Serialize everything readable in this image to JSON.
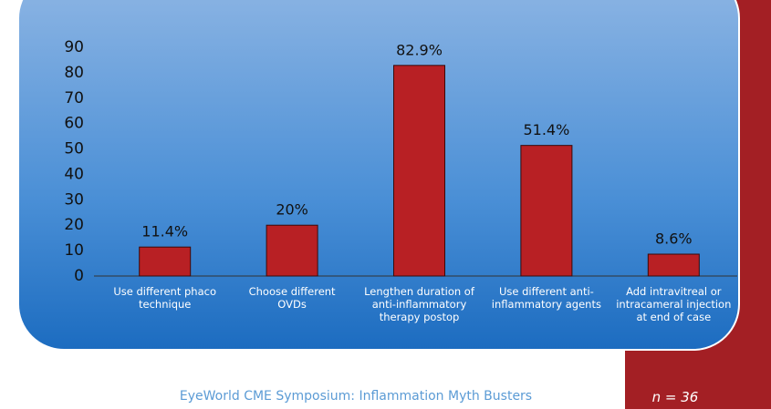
{
  "chart_data": {
    "type": "bar",
    "categories": [
      "Use different phaco technique",
      "Choose different OVDs",
      "Lengthen duration of anti-inflammatory therapy postop",
      "Use different anti-inflammatory agents",
      "Add intravitreal or intracameral injection at end of case"
    ],
    "values": [
      11.4,
      20,
      82.9,
      51.4,
      8.6
    ],
    "value_labels": [
      "11.4%",
      "20%",
      "82.9%",
      "51.4%",
      "8.6%"
    ],
    "color": "#b82024",
    "ylim": [
      0,
      90
    ],
    "yticks": [
      0,
      10,
      20,
      30,
      40,
      50,
      60,
      70,
      80,
      90
    ]
  },
  "footer": "EyeWorld CME Symposium: Inflammation Myth Busters",
  "note": "n = 36"
}
